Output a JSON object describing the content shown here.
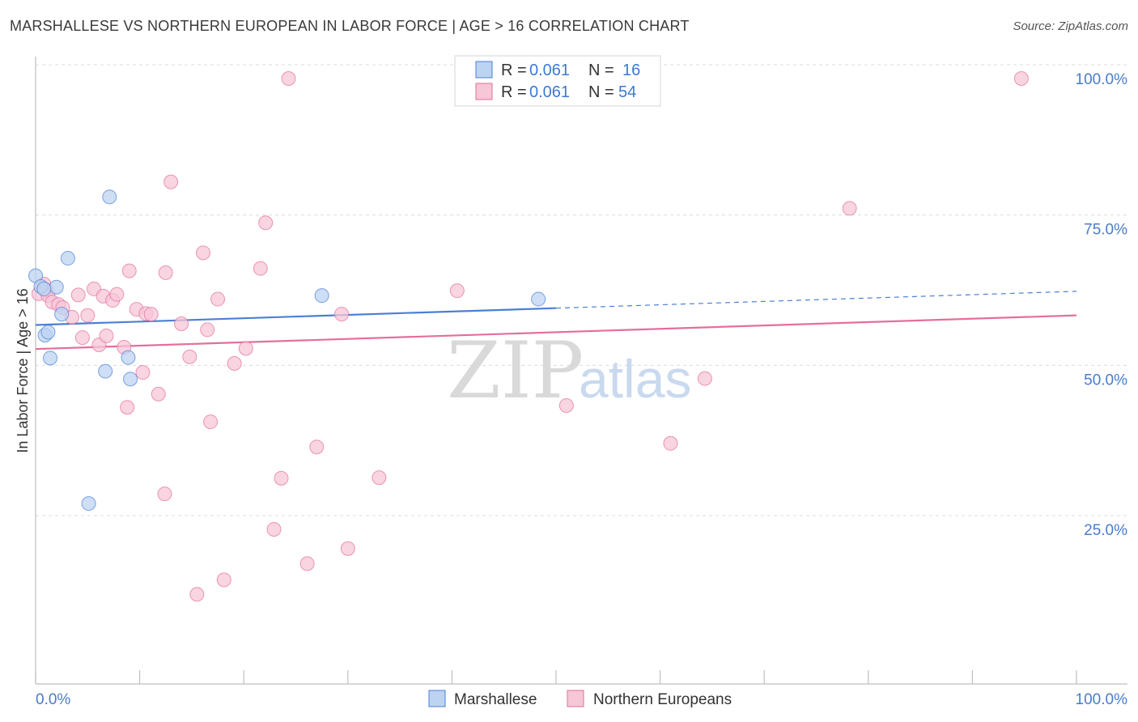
{
  "header": {
    "title": "MARSHALLESE VS NORTHERN EUROPEAN IN LABOR FORCE | AGE > 16 CORRELATION CHART",
    "source": "Source: ZipAtlas.com"
  },
  "watermark": {
    "zip": "ZIP",
    "atlas": "atlas"
  },
  "chart_data": {
    "type": "scatter",
    "title": "MARSHALLESE VS NORTHERN EUROPEAN IN LABOR FORCE | AGE > 16 CORRELATION CHART",
    "xlabel": "",
    "ylabel": "In Labor Force | Age > 16",
    "xlim": [
      0,
      100
    ],
    "ylim": [
      0,
      103
    ],
    "x_tick_labels": [
      "0.0%",
      "100.0%"
    ],
    "y_ticks": [
      {
        "value": 100,
        "label": "100.0%"
      },
      {
        "value": 75,
        "label": "75.0%"
      },
      {
        "value": 50,
        "label": "50.0%"
      },
      {
        "value": 25,
        "label": "25.0%"
      }
    ],
    "grid": true,
    "legend_position": "top-center",
    "series": [
      {
        "name": "Marshallese",
        "color": "#4a7fd4",
        "fill": "#bcd3f2",
        "r": "0.061",
        "n": "16",
        "trend": {
          "x0": 0,
          "y0": 59.0,
          "x1": 50,
          "y1": 61.8,
          "dashed_to_x": 100,
          "dashed_to_y": 64.6
        },
        "points": [
          {
            "x": 0.0,
            "y": 67.2
          },
          {
            "x": 0.5,
            "y": 65.4
          },
          {
            "x": 0.9,
            "y": 57.3
          },
          {
            "x": 1.2,
            "y": 57.8
          },
          {
            "x": 1.4,
            "y": 53.5
          },
          {
            "x": 2.0,
            "y": 65.3
          },
          {
            "x": 2.5,
            "y": 60.8
          },
          {
            "x": 3.1,
            "y": 70.1
          },
          {
            "x": 6.7,
            "y": 51.3
          },
          {
            "x": 7.1,
            "y": 80.3
          },
          {
            "x": 8.9,
            "y": 53.6
          },
          {
            "x": 9.1,
            "y": 50.0
          },
          {
            "x": 27.5,
            "y": 63.9
          },
          {
            "x": 48.3,
            "y": 63.3
          },
          {
            "x": 5.1,
            "y": 29.3
          },
          {
            "x": 0.8,
            "y": 65.0
          }
        ]
      },
      {
        "name": "Northern Europeans",
        "color": "#e36f9b",
        "fill": "#f7c6d7",
        "r": "0.061",
        "n": "54",
        "trend": {
          "x0": 0,
          "y0": 55.0,
          "x1": 100,
          "y1": 60.6
        },
        "points": [
          {
            "x": 0.3,
            "y": 64.2
          },
          {
            "x": 0.8,
            "y": 65.8
          },
          {
            "x": 1.0,
            "y": 64.8
          },
          {
            "x": 1.2,
            "y": 63.9
          },
          {
            "x": 1.6,
            "y": 62.8
          },
          {
            "x": 2.2,
            "y": 62.4
          },
          {
            "x": 2.6,
            "y": 61.9
          },
          {
            "x": 3.5,
            "y": 60.3
          },
          {
            "x": 4.1,
            "y": 64.0
          },
          {
            "x": 4.5,
            "y": 56.9
          },
          {
            "x": 5.0,
            "y": 60.6
          },
          {
            "x": 5.6,
            "y": 65.0
          },
          {
            "x": 6.1,
            "y": 55.7
          },
          {
            "x": 6.5,
            "y": 63.8
          },
          {
            "x": 6.8,
            "y": 57.2
          },
          {
            "x": 7.4,
            "y": 63.1
          },
          {
            "x": 7.8,
            "y": 64.1
          },
          {
            "x": 8.5,
            "y": 55.3
          },
          {
            "x": 8.8,
            "y": 45.3
          },
          {
            "x": 9.0,
            "y": 68.0
          },
          {
            "x": 9.7,
            "y": 61.6
          },
          {
            "x": 10.3,
            "y": 51.1
          },
          {
            "x": 10.6,
            "y": 60.9
          },
          {
            "x": 11.1,
            "y": 60.8
          },
          {
            "x": 11.8,
            "y": 47.5
          },
          {
            "x": 12.5,
            "y": 67.7
          },
          {
            "x": 13.0,
            "y": 82.8
          },
          {
            "x": 12.4,
            "y": 30.9
          },
          {
            "x": 14.0,
            "y": 59.2
          },
          {
            "x": 14.8,
            "y": 53.7
          },
          {
            "x": 15.5,
            "y": 14.2
          },
          {
            "x": 16.1,
            "y": 71.0
          },
          {
            "x": 16.5,
            "y": 58.2
          },
          {
            "x": 16.8,
            "y": 42.9
          },
          {
            "x": 17.5,
            "y": 63.3
          },
          {
            "x": 18.1,
            "y": 16.6
          },
          {
            "x": 19.1,
            "y": 52.6
          },
          {
            "x": 20.2,
            "y": 55.1
          },
          {
            "x": 21.6,
            "y": 68.4
          },
          {
            "x": 22.1,
            "y": 76.0
          },
          {
            "x": 22.9,
            "y": 25.0
          },
          {
            "x": 23.6,
            "y": 33.5
          },
          {
            "x": 24.3,
            "y": 100.0
          },
          {
            "x": 26.1,
            "y": 19.3
          },
          {
            "x": 27.0,
            "y": 38.7
          },
          {
            "x": 29.4,
            "y": 60.8
          },
          {
            "x": 30.0,
            "y": 21.8
          },
          {
            "x": 33.0,
            "y": 33.6
          },
          {
            "x": 40.5,
            "y": 64.7
          },
          {
            "x": 51.0,
            "y": 45.6
          },
          {
            "x": 61.0,
            "y": 39.3
          },
          {
            "x": 64.3,
            "y": 50.1
          },
          {
            "x": 78.2,
            "y": 78.4
          },
          {
            "x": 94.7,
            "y": 100.0
          }
        ]
      }
    ]
  },
  "legend": {
    "r_label": "R =",
    "n_label": "N =",
    "items": [
      {
        "r": "0.061",
        "n": "16"
      },
      {
        "r": "0.061",
        "n": "54"
      }
    ]
  },
  "bottom_legend": {
    "items": [
      "Marshallese",
      "Northern Europeans"
    ]
  }
}
